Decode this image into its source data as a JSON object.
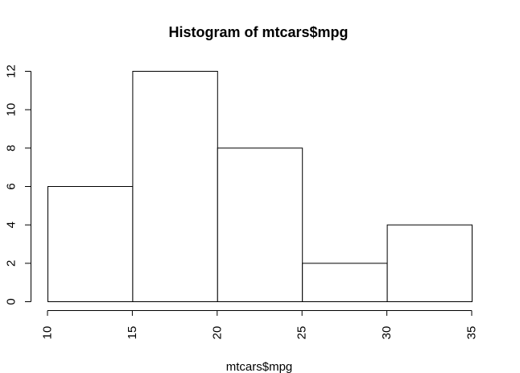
{
  "chart_data": {
    "type": "bar",
    "title": "Histogram of mtcars$mpg",
    "xlabel": "mtcars$mpg",
    "ylabel": "",
    "bins": [
      {
        "start": 10,
        "end": 15,
        "count": 6
      },
      {
        "start": 15,
        "end": 20,
        "count": 12
      },
      {
        "start": 20,
        "end": 25,
        "count": 8
      },
      {
        "start": 25,
        "end": 30,
        "count": 2
      },
      {
        "start": 30,
        "end": 35,
        "count": 4
      }
    ],
    "xlim": [
      10,
      35
    ],
    "ylim": [
      0,
      12
    ],
    "x_ticks": [
      "10",
      "15",
      "20",
      "25",
      "30",
      "35"
    ],
    "y_ticks": [
      "0",
      "2",
      "4",
      "6",
      "8",
      "10",
      "12"
    ],
    "grid": false,
    "colors": {
      "bar_fill": "#ffffff",
      "bar_stroke": "#000000"
    }
  }
}
